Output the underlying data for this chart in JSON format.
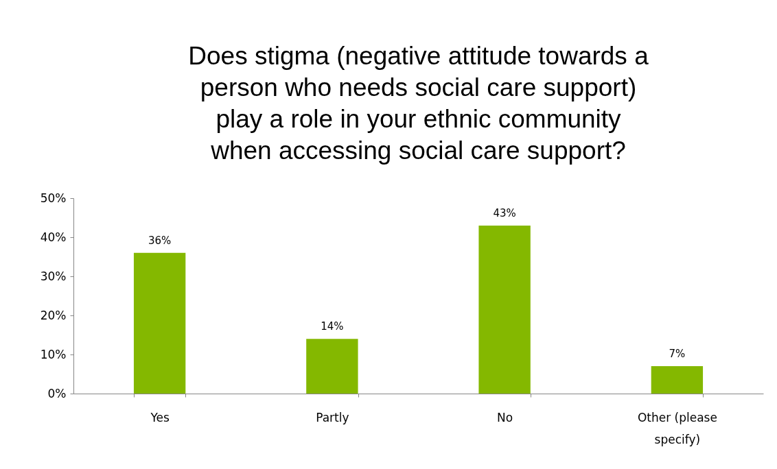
{
  "chart_data": {
    "type": "bar",
    "title": "Does stigma (negative attitude towards a person who needs social care support) play a role in your ethnic community when accessing social care support?",
    "categories": [
      "Yes",
      "Partly",
      "No",
      "Other (please specify)"
    ],
    "values": [
      36,
      14,
      43,
      7
    ],
    "value_labels": [
      "36%",
      "14%",
      "43%",
      "7%"
    ],
    "color": "#84b800",
    "ylim": [
      0,
      50
    ],
    "yticks": [
      {
        "value": 0,
        "label": "0%"
      },
      {
        "value": 10,
        "label": "10%"
      },
      {
        "value": 20,
        "label": "20%"
      },
      {
        "value": 30,
        "label": "30%"
      },
      {
        "value": 40,
        "label": "40%"
      },
      {
        "value": 50,
        "label": "50%"
      }
    ],
    "grid": false
  }
}
